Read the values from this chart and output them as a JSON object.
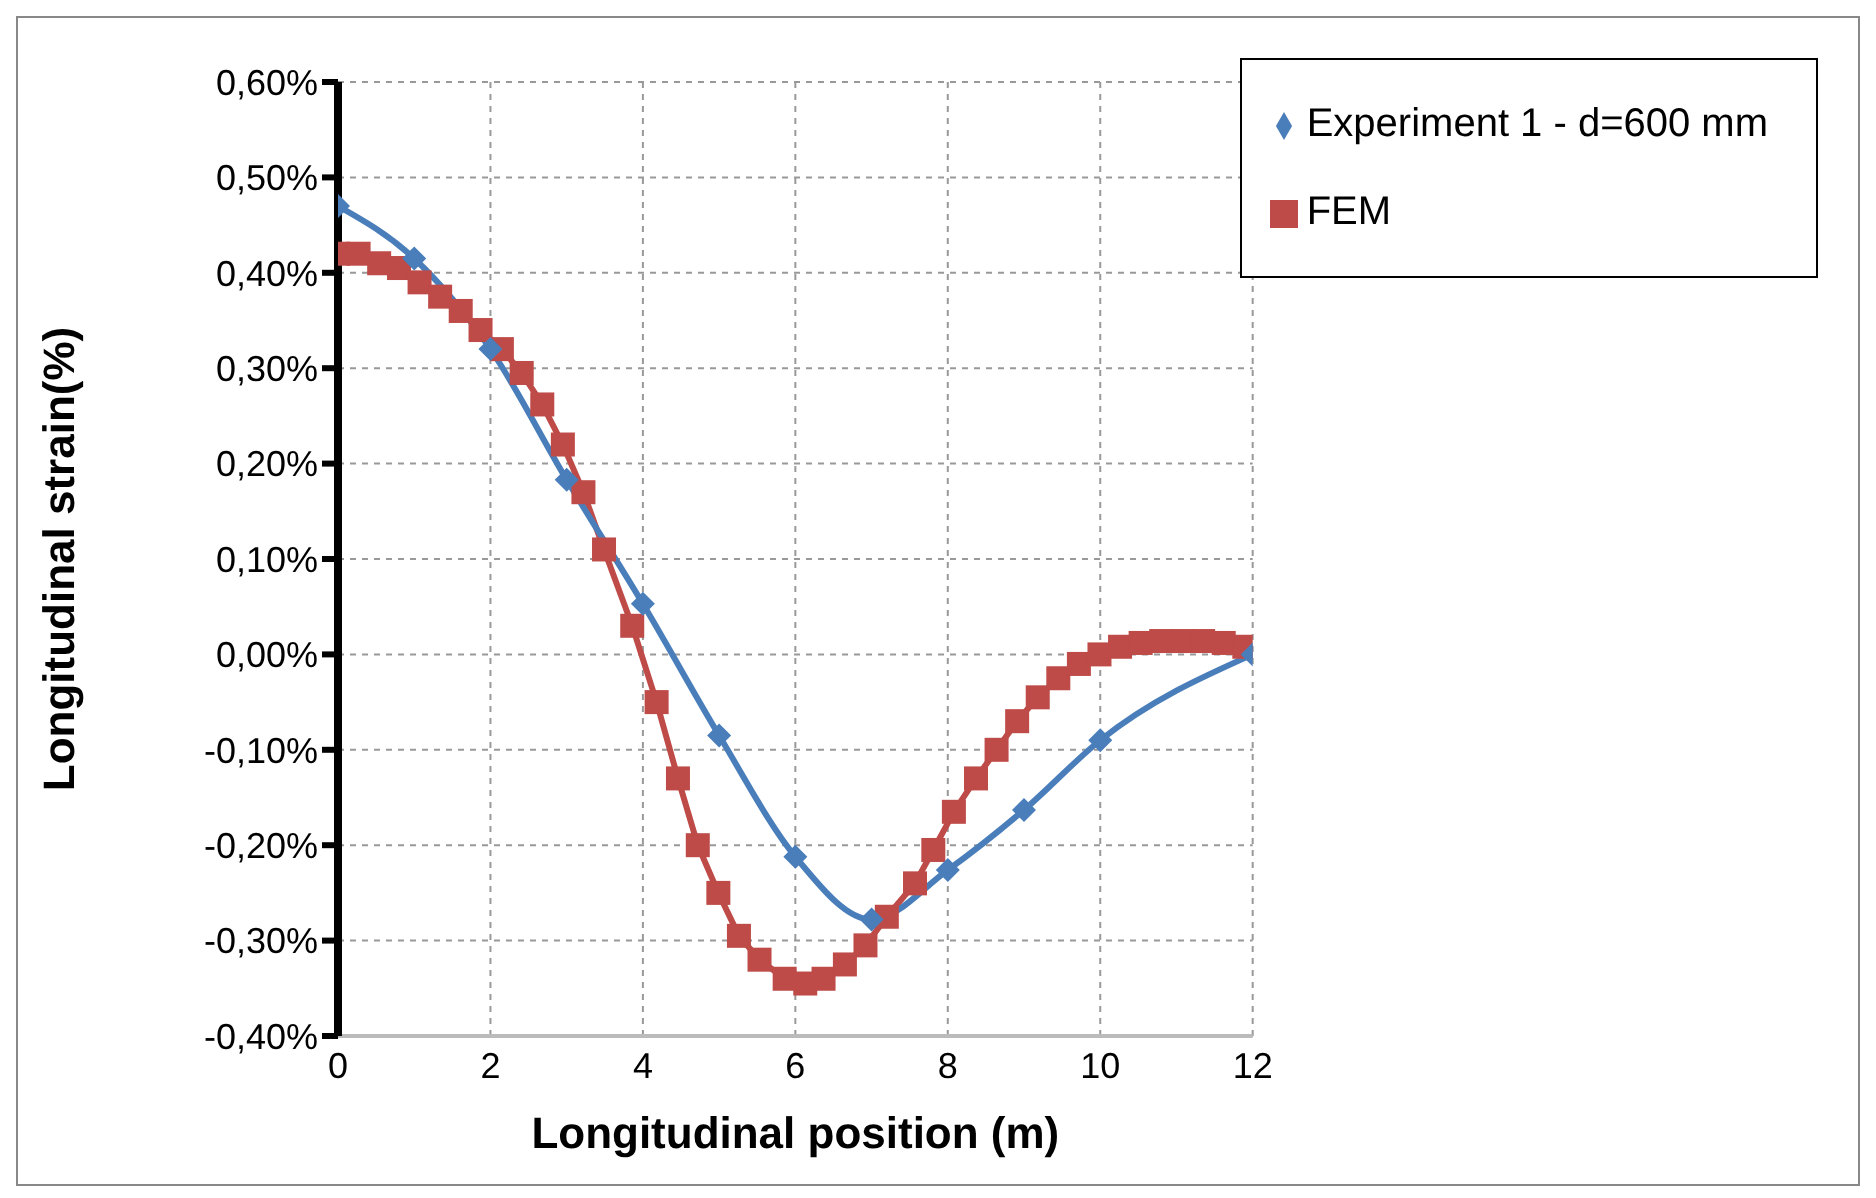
{
  "chart_data": {
    "type": "line",
    "xlabel": "Longitudinal position (m)",
    "ylabel": "Longitudinal strain(%)",
    "xlim": [
      0,
      12
    ],
    "xticks": [
      0,
      2,
      4,
      6,
      8,
      10,
      12
    ],
    "ylim": [
      -0.4,
      0.6
    ],
    "yticks": [
      {
        "value": -0.4,
        "label": "-0,40%"
      },
      {
        "value": -0.3,
        "label": "-0,30%"
      },
      {
        "value": -0.2,
        "label": "-0,20%"
      },
      {
        "value": -0.1,
        "label": "-0,10%"
      },
      {
        "value": 0,
        "label": "0,00%"
      },
      {
        "value": 0.1,
        "label": "0,10%"
      },
      {
        "value": 0.2,
        "label": "0,20%"
      },
      {
        "value": 0.3,
        "label": "0,30%"
      },
      {
        "value": 0.4,
        "label": "0,40%"
      },
      {
        "value": 0.5,
        "label": "0,50%"
      },
      {
        "value": 0.6,
        "label": "0,60%"
      }
    ],
    "grid": true,
    "legend": "top right",
    "series": [
      {
        "name": "Experiment 1 - d=600 mm",
        "color": "#4a7ebb",
        "marker": "diamond",
        "x": [
          0,
          1,
          2,
          3,
          4,
          5,
          6,
          7,
          8,
          9,
          10,
          12
        ],
        "values": [
          0.47,
          0.415,
          0.32,
          0.183,
          0.053,
          -0.085,
          -0.212,
          -0.278,
          -0.226,
          -0.163,
          -0.09,
          0
        ]
      },
      {
        "name": "FEM",
        "color": "#be4b48",
        "marker": "square",
        "x": [
          0,
          0.27,
          0.54,
          0.8,
          1.07,
          1.34,
          1.61,
          1.87,
          2.15,
          2.41,
          2.68,
          2.95,
          3.22,
          3.49,
          3.86,
          4.18,
          4.46,
          4.72,
          4.99,
          5.26,
          5.53,
          5.86,
          6.13,
          6.37,
          6.65,
          6.92,
          7.2,
          7.57,
          7.81,
          8.08,
          8.37,
          8.64,
          8.91,
          9.18,
          9.45,
          9.72,
          9.99,
          10.26,
          10.53,
          10.8,
          11.08,
          11.35,
          11.62,
          11.89
        ],
        "values": [
          0.42,
          0.42,
          0.41,
          0.405,
          0.39,
          0.375,
          0.36,
          0.34,
          0.32,
          0.295,
          0.262,
          0.22,
          0.17,
          0.11,
          0.03,
          -0.05,
          -0.13,
          -0.2,
          -0.25,
          -0.295,
          -0.32,
          -0.34,
          -0.345,
          -0.34,
          -0.325,
          -0.305,
          -0.275,
          -0.24,
          -0.205,
          -0.165,
          -0.13,
          -0.1,
          -0.07,
          -0.045,
          -0.025,
          -0.01,
          0,
          0.008,
          0.012,
          0.014,
          0.014,
          0.014,
          0.012,
          0.008
        ]
      }
    ]
  }
}
